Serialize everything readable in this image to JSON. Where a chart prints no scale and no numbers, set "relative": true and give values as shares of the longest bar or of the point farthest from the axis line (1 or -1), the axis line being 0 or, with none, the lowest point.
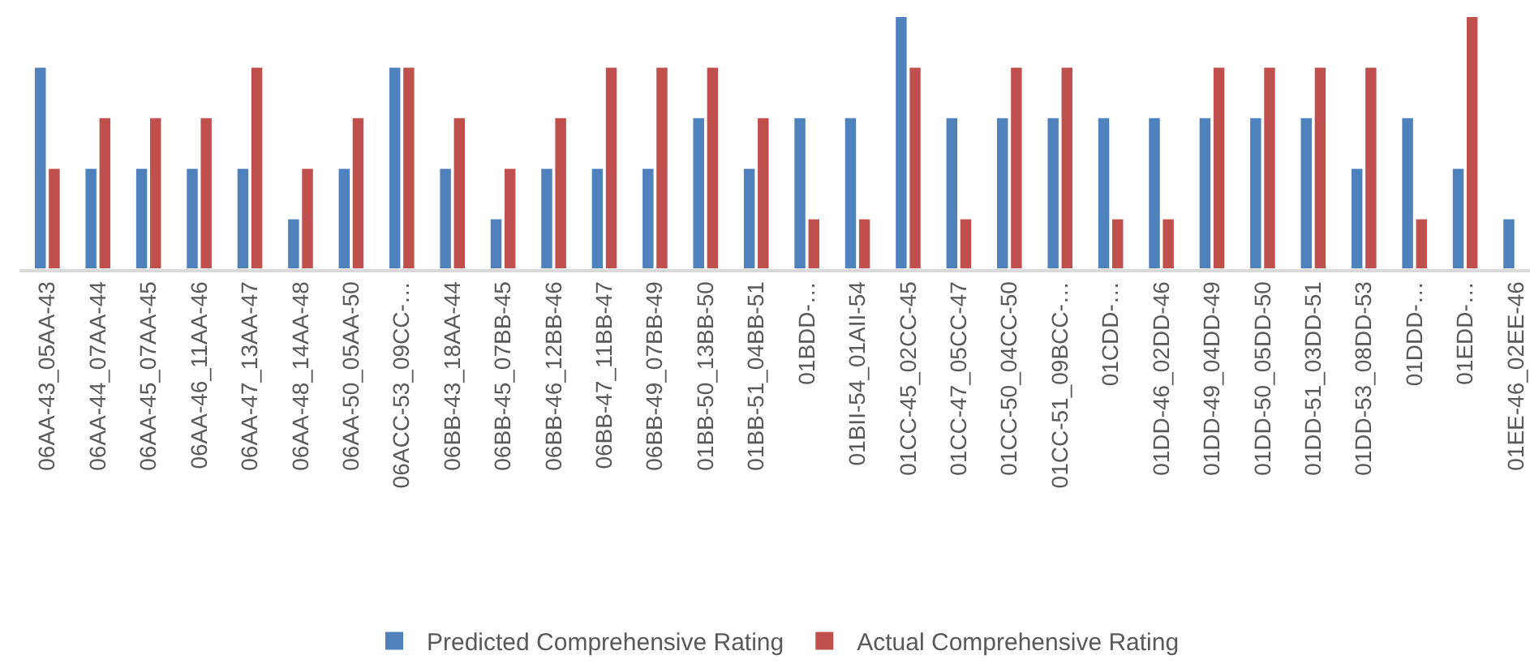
{
  "chart_data": {
    "type": "bar",
    "relative": true,
    "legend": "bottom",
    "categories": [
      "06AA-43_05AA-43",
      "06AA-44_07AA-44",
      "06AA-45_07AA-45",
      "06AA-46_11AA-46",
      "06AA-47_13AA-47",
      "06AA-48_14AA-48",
      "06AA-50_05AA-50",
      "06ACC-53_09CC-…",
      "06BB-43_18AA-44",
      "06BB-45_07BB-45",
      "06BB-46_12BB-46",
      "06BB-47_11BB-47",
      "06BB-49_07BB-49",
      "01BB-50_13BB-50",
      "01BB-51_04BB-51",
      "01BDD-…",
      "01BII-54_01AII-54",
      "01CC-45_02CC-45",
      "01CC-47_05CC-47",
      "01CC-50_04CC-50",
      "01CC-51_09BCC-…",
      "01CDD-…",
      "01DD-46_02DD-46",
      "01DD-49_04DD-49",
      "01DD-50_05DD-50",
      "01DD-51_03DD-51",
      "01DD-53_08DD-53",
      "01DDD-…",
      "01EDD-…",
      "01EE-46_02EE-46"
    ],
    "series": [
      {
        "name": "Predicted Comprehensive Rating",
        "color": "#4f81bd",
        "values": [
          0.8,
          0.4,
          0.4,
          0.4,
          0.4,
          0.2,
          0.4,
          0.8,
          0.4,
          0.2,
          0.4,
          0.4,
          0.4,
          0.6,
          0.4,
          0.6,
          0.6,
          1,
          0.6,
          0.6,
          0.6,
          0.6,
          0.6,
          0.6,
          0.6,
          0.6,
          0.4,
          0.6,
          0.4,
          0.2
        ]
      },
      {
        "name": "Actual Comprehensive Rating",
        "color": "#c0504d",
        "values": [
          0.4,
          0.6,
          0.6,
          0.6,
          0.8,
          0.4,
          0.6,
          0.8,
          0.6,
          0.4,
          0.6,
          0.8,
          0.8,
          0.8,
          0.6,
          0.2,
          0.2,
          0.8,
          0.2,
          0.8,
          0.8,
          0.2,
          0.2,
          0.8,
          0.8,
          0.8,
          0.8,
          0.2,
          1,
          null
        ]
      }
    ]
  }
}
